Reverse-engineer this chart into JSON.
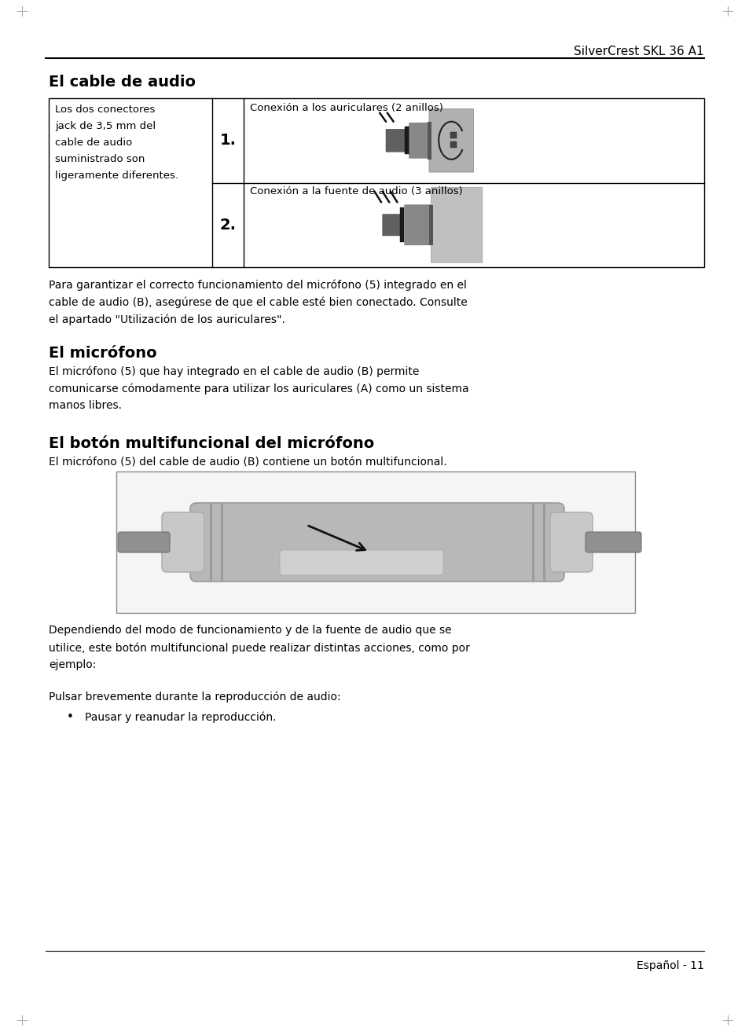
{
  "page_width": 9.54,
  "page_height": 13.12,
  "dpi": 100,
  "bg": "#ffffff",
  "text_color": "#000000",
  "header": "SilverCrest SKL 36 A1",
  "footer": "Español - 11",
  "section1": "El cable de audio",
  "section2": "El micrófono",
  "section3": "El botón multifuncional del micrófono",
  "left_col": "Los dos conectores\njack de 3,5 mm del\ncable de audio\nsuministrado son\nligeramente diferentes.",
  "label1": "Conexión a los auriculares (2 anillos)",
  "label2": "Conexión a la fuente de audio (3 anillos)",
  "num1": "1.",
  "num2": "2.",
  "para1_line1": "Para garantizar el correcto funcionamiento del micrófono (5) integrado en el",
  "para1_line2": "cable de audio (B), asegúrese de que el cable esté bien conectado. Consulte",
  "para1_line3": "el apartado \"Utilización de los auriculares\".",
  "para2_line1": "El micrófono (5) que hay integrado en el cable de audio (B) permite",
  "para2_line2": "comunicarse cómodamente para utilizar los auriculares (A) como un sistema",
  "para2_line3": "manos libres.",
  "para3": "El micrófono (5) del cable de audio (B) contiene un botón multifuncional.",
  "para4_line1": "Dependiendo del modo de funcionamiento y de la fuente de audio que se",
  "para4_line2": "utilice, este botón multifuncional puede realizar distintas acciones, como por",
  "para4_line3": "ejemplo:",
  "para5": "Pulsar brevemente durante la reproducción de audio:",
  "bullet1": "Pausar y reanudar la reproducción."
}
